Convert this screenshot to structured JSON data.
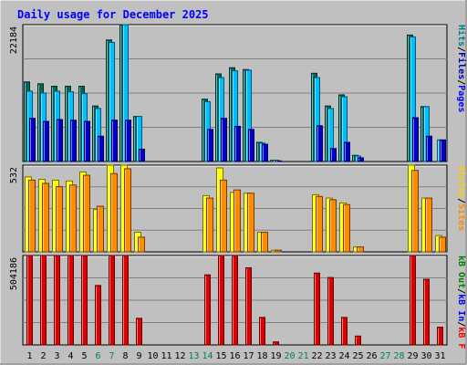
{
  "chart_data": {
    "type": "bar",
    "title": "Daily usage for December 2025",
    "days": [
      "1",
      "2",
      "3",
      "4",
      "5",
      "6",
      "7",
      "8",
      "9",
      "10",
      "11",
      "12",
      "13",
      "14",
      "15",
      "16",
      "17",
      "18",
      "19",
      "20",
      "21",
      "22",
      "23",
      "24",
      "25",
      "26",
      "27",
      "28",
      "29",
      "30",
      "31"
    ],
    "weekend_days": [
      "6",
      "7",
      "13",
      "14",
      "20",
      "21",
      "27",
      "28"
    ],
    "panels": [
      {
        "name": "hits",
        "ymax_label": "22184",
        "ymax": 22184,
        "legend": [
          {
            "label": "Pages",
            "color": "#0000ff"
          },
          {
            "label": "Files",
            "color": "#0000aa"
          },
          {
            "label": "Hits",
            "color": "#008080"
          }
        ],
        "series": [
          {
            "name": "Hits",
            "color": "#006655",
            "values": [
              12900,
              12600,
              12200,
              12200,
              12200,
              9000,
              19700,
              23000,
              7300,
              0,
              0,
              0,
              0,
              10100,
              14200,
              15200,
              14900,
              3100,
              200,
              0,
              0,
              14300,
              9000,
              10800,
              1000,
              0,
              0,
              0,
              20500,
              8900,
              0
            ]
          },
          {
            "name": "Files",
            "color": "#00bfff",
            "values": [
              11400,
              11100,
              11400,
              11300,
              11000,
              8600,
              19300,
              22400,
              7300,
              0,
              0,
              0,
              0,
              9700,
              13600,
              14700,
              14800,
              3000,
              200,
              0,
              0,
              13600,
              8600,
              10500,
              900,
              0,
              0,
              0,
              20200,
              8900,
              3500
            ]
          },
          {
            "name": "Pages",
            "color": "#0000cc",
            "values": [
              7000,
              6500,
              6800,
              6700,
              6500,
              4100,
              6700,
              6700,
              2000,
              0,
              0,
              0,
              0,
              5200,
              7000,
              5700,
              5200,
              2800,
              100,
              0,
              0,
              5800,
              2100,
              3100,
              600,
              0,
              0,
              0,
              7100,
              4100,
              3500
            ]
          }
        ]
      },
      {
        "name": "visits",
        "ymax_label": "532",
        "ymax": 532,
        "legend": [
          {
            "label": "Sites",
            "color": "#ff8c00"
          },
          {
            "label": "Visits",
            "color": "#ffcc00"
          }
        ],
        "series": [
          {
            "name": "Visits",
            "color": "#ffff00",
            "values": [
              460,
              445,
              440,
              435,
              490,
              260,
              550,
              590,
              120,
              0,
              0,
              0,
              0,
              345,
              515,
              365,
              360,
              120,
              10,
              0,
              0,
              350,
              330,
              300,
              30,
              0,
              0,
              0,
              680,
              330,
              100
            ]
          },
          {
            "name": "Sites",
            "color": "#ff8c00",
            "values": [
              440,
              420,
              400,
              410,
              470,
              280,
              480,
              510,
              90,
              0,
              0,
              0,
              0,
              330,
              440,
              380,
              360,
              120,
              10,
              0,
              0,
              340,
              320,
              290,
              30,
              0,
              0,
              0,
              500,
              330,
              90
            ]
          }
        ]
      },
      {
        "name": "kbytes",
        "ymax_label": "504186",
        "ymax": 504186,
        "legend": [
          {
            "label": "kB F",
            "color": "#ff0000"
          },
          {
            "label": "kB In",
            "color": "#0000ff"
          },
          {
            "label": "kB Out",
            "color": "#008000"
          }
        ],
        "series": [
          {
            "name": "kB F",
            "color": "#dd0000",
            "values": [
              540000,
              525000,
              535000,
              545000,
              545000,
              335000,
              540000,
              530000,
              150000,
              0,
              0,
              0,
              0,
              395000,
              515000,
              535000,
              435000,
              155000,
              17000,
              0,
              0,
              405000,
              380000,
              155000,
              50000,
              0,
              0,
              0,
              540000,
              370000,
              100000
            ]
          }
        ]
      }
    ]
  }
}
